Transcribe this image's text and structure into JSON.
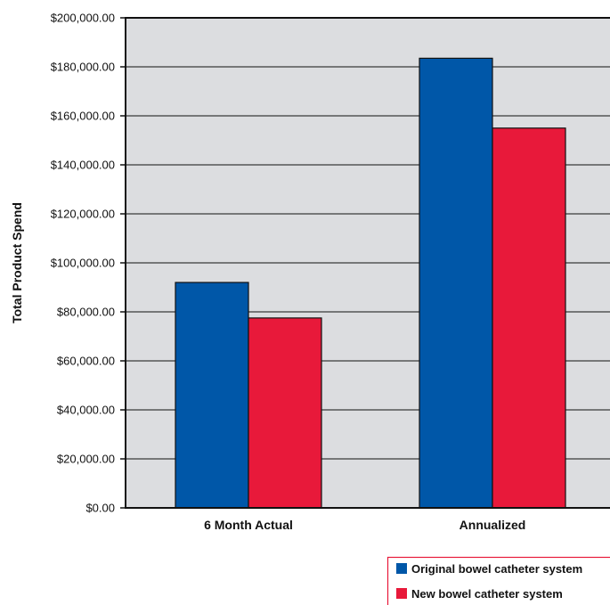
{
  "chart_data": {
    "type": "bar",
    "categories": [
      "6 Month Actual",
      "Annualized"
    ],
    "series": [
      {
        "name": "Original bowel catheter system",
        "values": [
          92000,
          183500
        ],
        "color": "#0057a8"
      },
      {
        "name": "New bowel catheter system",
        "values": [
          77500,
          155000
        ],
        "color": "#e8193a"
      }
    ],
    "ylabel": "Total Product Spend",
    "ylim": [
      0,
      200000
    ],
    "yticks": [
      0,
      20000,
      40000,
      60000,
      80000,
      100000,
      120000,
      140000,
      160000,
      180000,
      200000
    ],
    "ytick_labels": [
      "$0.00",
      "$20,000.00",
      "$40,000.00",
      "$60,000.00",
      "$80,000.00",
      "$100,000.00",
      "$120,000.00",
      "$140,000.00",
      "$160,000.00",
      "$180,000.00",
      "$200,000.00"
    ],
    "grid": true,
    "legend": "bottom-right",
    "plot_background": "#dcdde0",
    "legend_border_color": "#e8193a"
  }
}
